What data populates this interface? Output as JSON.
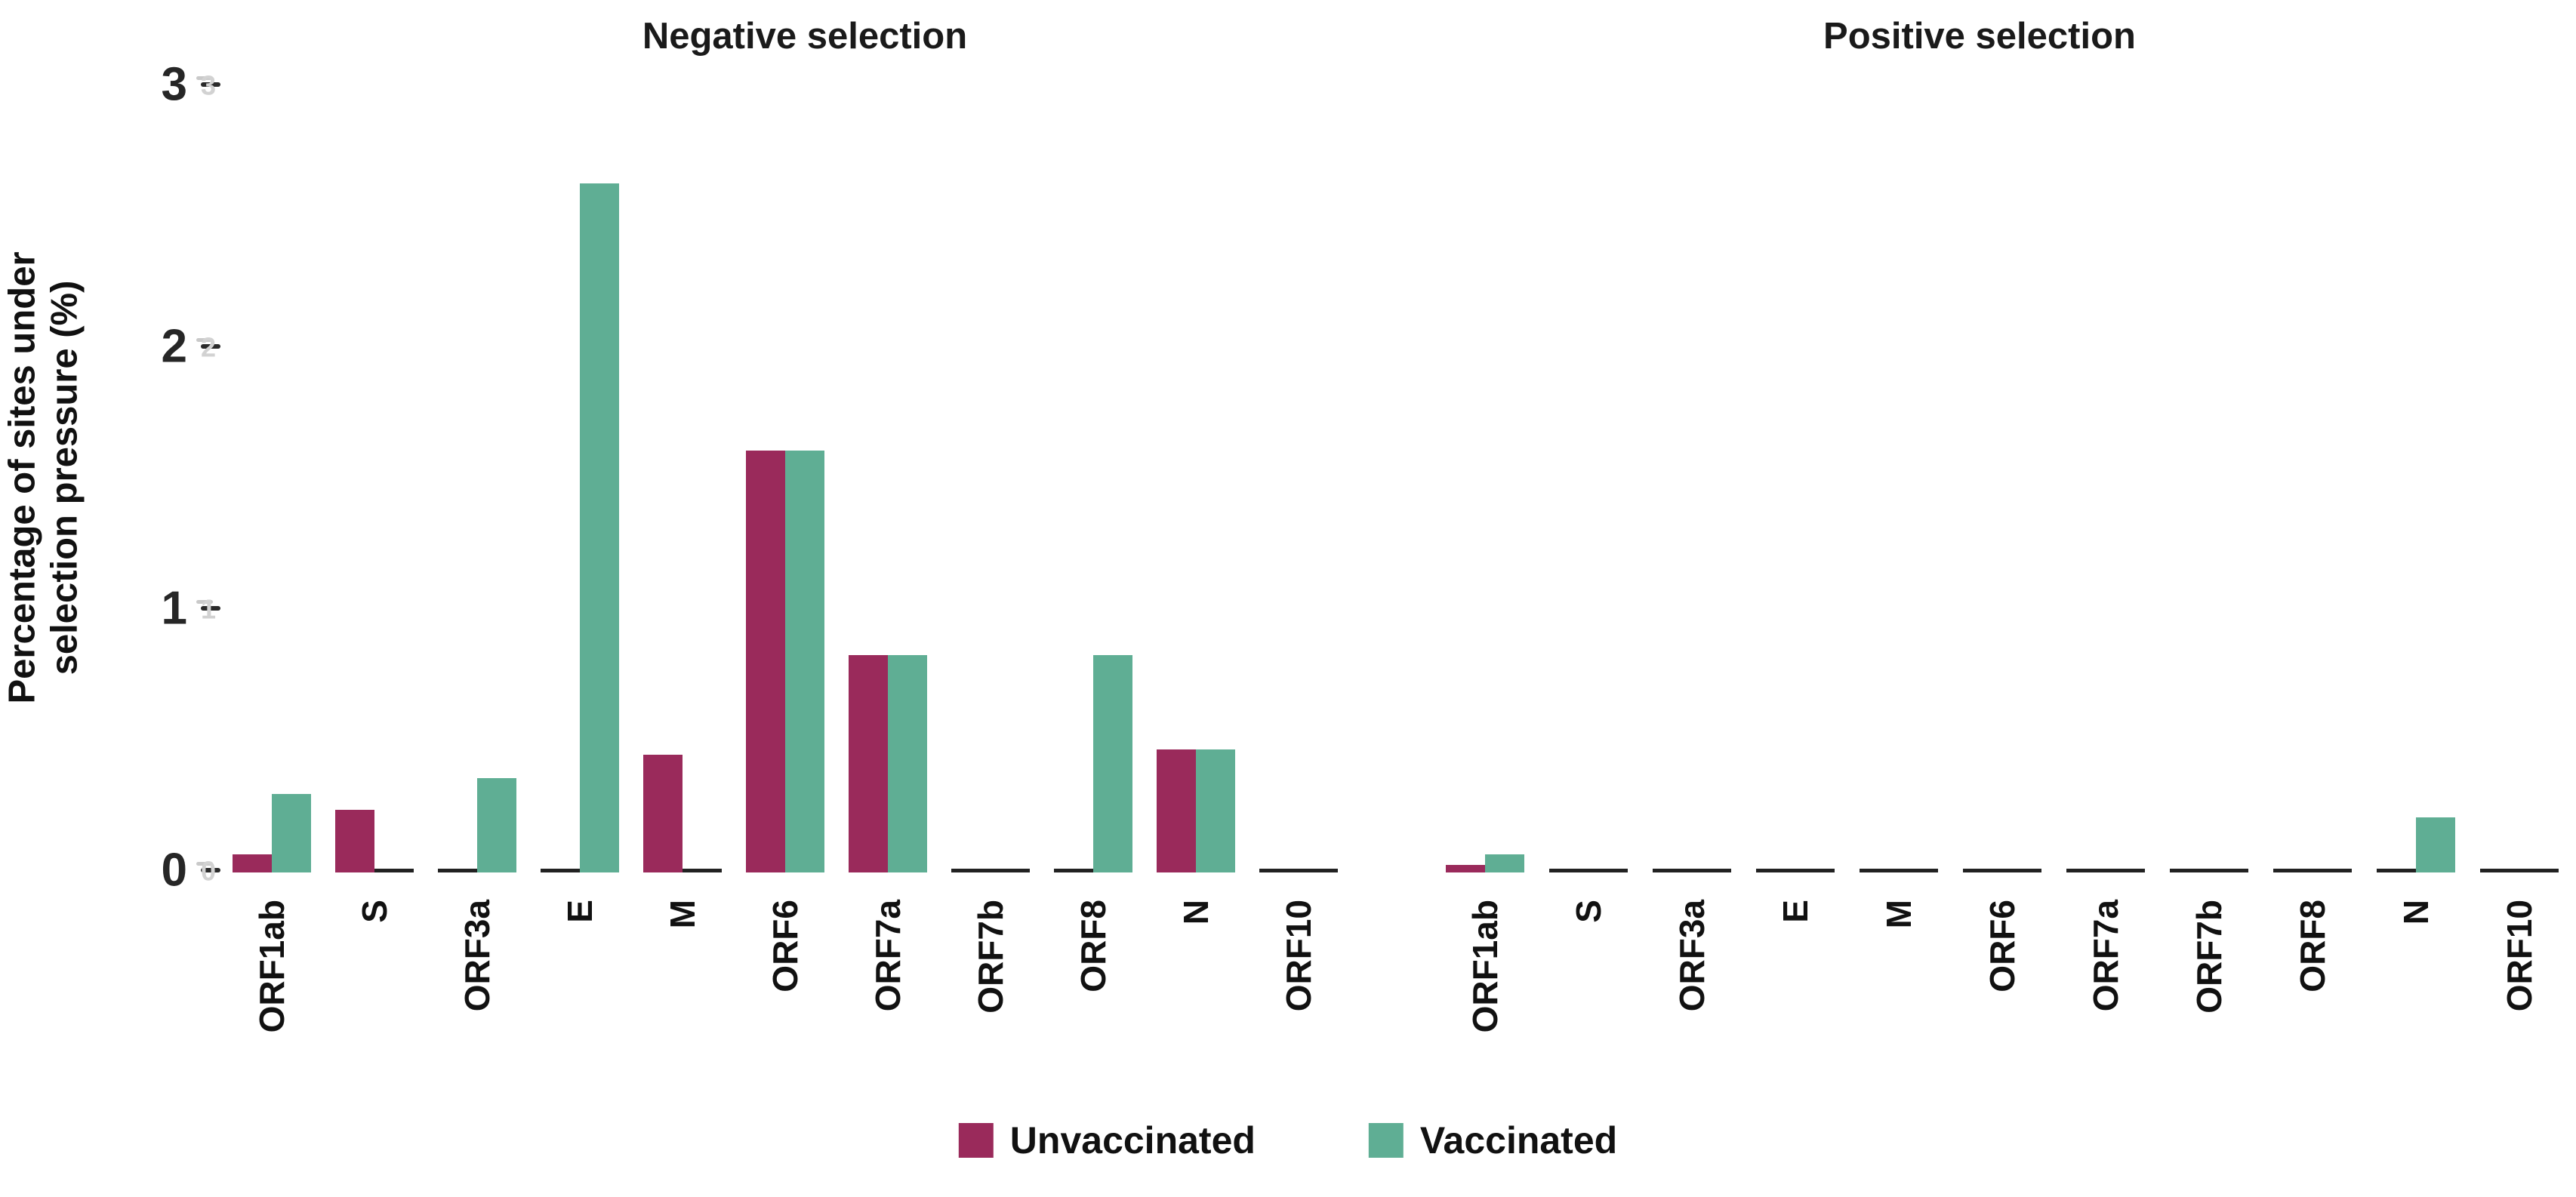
{
  "figure": {
    "y_axis_label_line1": "Percentage of sites under",
    "y_axis_label_line2": "selection pressure (%)",
    "colors": {
      "unvaccinated": "#9a2a5b",
      "vaccinated": "#5fae94",
      "axis": "#222222",
      "tick_text": "#262626",
      "tick_echo": "#d2d2d2",
      "title_text": "#1a1a1a"
    },
    "legend": [
      {
        "label": "Unvaccinated",
        "color": "#9a2a5b"
      },
      {
        "label": "Vaccinated",
        "color": "#5fae94"
      }
    ]
  },
  "chart_data": [
    {
      "type": "bar",
      "title": "Negative selection",
      "categories": [
        "ORF1ab",
        "S",
        "ORF3a",
        "E",
        "M",
        "ORF6",
        "ORF7a",
        "ORF7b",
        "ORF8",
        "N",
        "ORF10"
      ],
      "series": [
        {
          "name": "Unvaccinated",
          "color": "#9a2a5b",
          "values": [
            0.07,
            0.24,
            0,
            0,
            0.45,
            1.61,
            0.83,
            0,
            0,
            0.47,
            0
          ]
        },
        {
          "name": "Vaccinated",
          "color": "#5fae94",
          "values": [
            0.3,
            0,
            0.36,
            2.63,
            0,
            1.61,
            0.83,
            0,
            0.83,
            0.47,
            0
          ]
        }
      ],
      "ylabel": "Percentage of sites under selection pressure (%)",
      "ylim": [
        0,
        3
      ],
      "yticks": [
        0,
        1,
        2,
        3
      ],
      "grid": false,
      "legend_position": "bottom",
      "zero_values_drawn_as": "flat black baseline segments"
    },
    {
      "type": "bar",
      "title": "Positive selection",
      "categories": [
        "ORF1ab",
        "S",
        "ORF3a",
        "E",
        "M",
        "ORF6",
        "ORF7a",
        "ORF7b",
        "ORF8",
        "N",
        "ORF10"
      ],
      "series": [
        {
          "name": "Unvaccinated",
          "color": "#9a2a5b",
          "values": [
            0.03,
            0,
            0,
            0,
            0,
            0,
            0,
            0,
            0,
            0,
            0
          ]
        },
        {
          "name": "Vaccinated",
          "color": "#5fae94",
          "values": [
            0.07,
            0,
            0,
            0,
            0,
            0,
            0,
            0,
            0,
            0.21,
            0
          ]
        }
      ],
      "ylabel": "Percentage of sites under selection pressure (%)",
      "ylim": [
        0,
        3
      ],
      "yticks": [
        0,
        1,
        2,
        3
      ],
      "grid": false,
      "legend_position": "bottom",
      "zero_values_drawn_as": "flat black baseline segments"
    }
  ]
}
